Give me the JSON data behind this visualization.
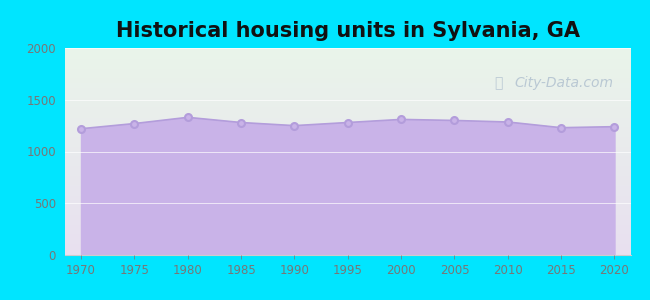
{
  "title": "Historical housing units in Sylvania, GA",
  "title_fontsize": 15,
  "title_fontweight": "bold",
  "years": [
    1970,
    1975,
    1980,
    1985,
    1990,
    1995,
    2000,
    2005,
    2010,
    2015,
    2020
  ],
  "values": [
    1220,
    1270,
    1330,
    1280,
    1250,
    1280,
    1310,
    1300,
    1285,
    1230,
    1240
  ],
  "xlim": [
    1968.5,
    2021.5
  ],
  "ylim": [
    0,
    2000
  ],
  "yticks": [
    0,
    500,
    1000,
    1500,
    2000
  ],
  "xticks": [
    1970,
    1975,
    1980,
    1985,
    1990,
    1995,
    2000,
    2005,
    2010,
    2015,
    2020
  ],
  "fill_color": "#c9b3e8",
  "line_color": "#b39ddb",
  "marker_color": "#b39ddb",
  "marker_face": "#c9b3e8",
  "bg_outer": "#00e5ff",
  "bg_plot_top": "#eaf5ea",
  "bg_plot_bottom": "#e8e0f0",
  "watermark": "City-Data.com",
  "watermark_color": "#aabbcc",
  "tick_color": "#777777",
  "tick_fontsize": 8.5
}
